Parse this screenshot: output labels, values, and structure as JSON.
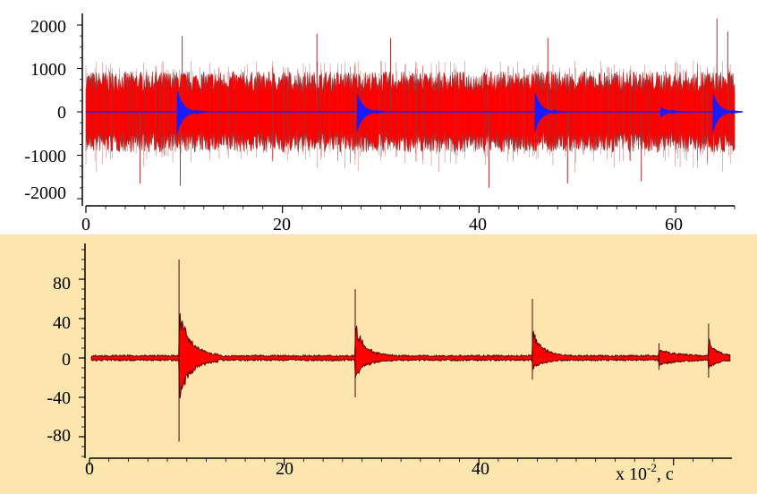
{
  "colors": {
    "top_background": "#ffffff",
    "bottom_background": "#fce6ad",
    "signal_fill": "#ff0000",
    "signal_edge_top": "#a83232",
    "signal_edge_bottom": "#5a0000",
    "event_overlay": "#1a1aff",
    "axis": "#000000"
  },
  "chart_data": [
    {
      "type": "line",
      "description_shape": "dense noisy waveform (red) with blue decaying bursts",
      "xlim": [
        0,
        66
      ],
      "ylim": [
        -2300,
        2300
      ],
      "x_ticks": [
        0,
        20,
        40,
        60
      ],
      "y_ticks": [
        2000,
        1000,
        0,
        -1000,
        -2000
      ],
      "x_tick_labels": [
        "0",
        "20",
        "40",
        "60"
      ],
      "y_tick_labels": [
        "2000",
        "1000",
        "0",
        "-1000",
        "-2000"
      ],
      "xlabel": "",
      "ylabel": "",
      "grid": false,
      "series": [
        {
          "color": "#ff0000",
          "envelope_typical": 850,
          "spike_peaks": [
            {
              "x": 5.5,
              "y": -1650
            },
            {
              "x": 9.8,
              "y": 1750
            },
            {
              "x": 9.6,
              "y": -1700
            },
            {
              "x": 23.5,
              "y": 1800
            },
            {
              "x": 31,
              "y": 1700
            },
            {
              "x": 41,
              "y": -1750
            },
            {
              "x": 47,
              "y": 1700
            },
            {
              "x": 49,
              "y": -1650
            },
            {
              "x": 56.5,
              "y": -1600
            },
            {
              "x": 64.2,
              "y": 2150
            },
            {
              "x": 65.3,
              "y": 1850
            }
          ]
        },
        {
          "color": "#1a1aff",
          "bursts": [
            {
              "x": 9.3,
              "peak": 500
            },
            {
              "x": 27.6,
              "peak": 450
            },
            {
              "x": 45.7,
              "peak": 450
            },
            {
              "x": 58.5,
              "peak": 120
            },
            {
              "x": 63.8,
              "peak": 450
            }
          ]
        }
      ]
    },
    {
      "type": "line",
      "description_shape": "quiet waveform with decaying transients",
      "xlim": [
        0,
        66
      ],
      "ylim": [
        -110,
        120
      ],
      "x_ticks": [
        0,
        20,
        40
      ],
      "y_ticks": [
        80,
        40,
        0,
        -40,
        -80
      ],
      "x_tick_labels": [
        "0",
        "20",
        "40"
      ],
      "y_tick_labels": [
        "80",
        "40",
        "0",
        "-40",
        "-80"
      ],
      "unit_prefix": "x 10",
      "unit_exponent": "-2",
      "unit_suffix": ", c",
      "grid": false,
      "series": [
        {
          "color": "#ff0000",
          "baseline_noise": 3,
          "bursts": [
            {
              "x": 9.2,
              "peak_pos": 100,
              "peak_neg": -85,
              "decay": 1.2
            },
            {
              "x": 27.3,
              "peak_pos": 70,
              "peak_neg": -40,
              "decay": 1.0
            },
            {
              "x": 45.5,
              "peak_pos": 60,
              "peak_neg": -22,
              "decay": 1.0
            },
            {
              "x": 58.5,
              "peak_pos": 15,
              "peak_neg": -12,
              "decay": 1.6
            },
            {
              "x": 63.6,
              "peak_pos": 35,
              "peak_neg": -20,
              "decay": 0.8
            }
          ]
        }
      ]
    }
  ]
}
